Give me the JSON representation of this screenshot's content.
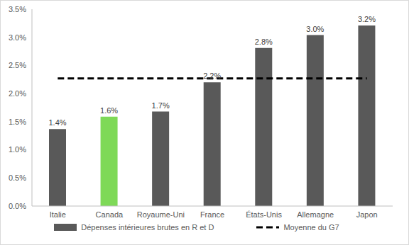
{
  "chart_data": {
    "type": "bar",
    "categories": [
      "Italie",
      "Canada",
      "Royaume-Uni",
      "France",
      "États-Unis",
      "Allemagne",
      "Japon"
    ],
    "series": [
      {
        "name": "Dépenses intérieures brutes en R et D",
        "type": "bar",
        "color": "#595959",
        "colors": [
          "#595959",
          "#7ED957",
          "#595959",
          "#595959",
          "#595959",
          "#595959",
          "#595959"
        ],
        "values": [
          1.37,
          1.59,
          1.68,
          2.2,
          2.81,
          3.04,
          3.21
        ],
        "value_labels": [
          "1.4%",
          "1.6%",
          "1.7%",
          "2.2%",
          "2.8%",
          "3.0%",
          "3.2%"
        ]
      },
      {
        "name": "Moyenne du G7",
        "type": "line",
        "color": "#000000",
        "line_style": "dashed",
        "values": [
          2.27,
          2.27,
          2.27,
          2.27,
          2.27,
          2.27,
          2.27
        ]
      }
    ],
    "ylim": [
      0,
      3.5
    ],
    "yticks": [
      {
        "value": 0,
        "label": "0.0%"
      },
      {
        "value": 0.5,
        "label": "0.5%"
      },
      {
        "value": 1,
        "label": "1.0%"
      },
      {
        "value": 1.5,
        "label": "1.5%"
      },
      {
        "value": 2,
        "label": "2.0%"
      },
      {
        "value": 2.5,
        "label": "2.5%"
      },
      {
        "value": 3,
        "label": "3.0%"
      },
      {
        "value": 3.5,
        "label": "3.5%"
      }
    ],
    "grid": false,
    "legend": "bottom",
    "data_labels": true
  }
}
